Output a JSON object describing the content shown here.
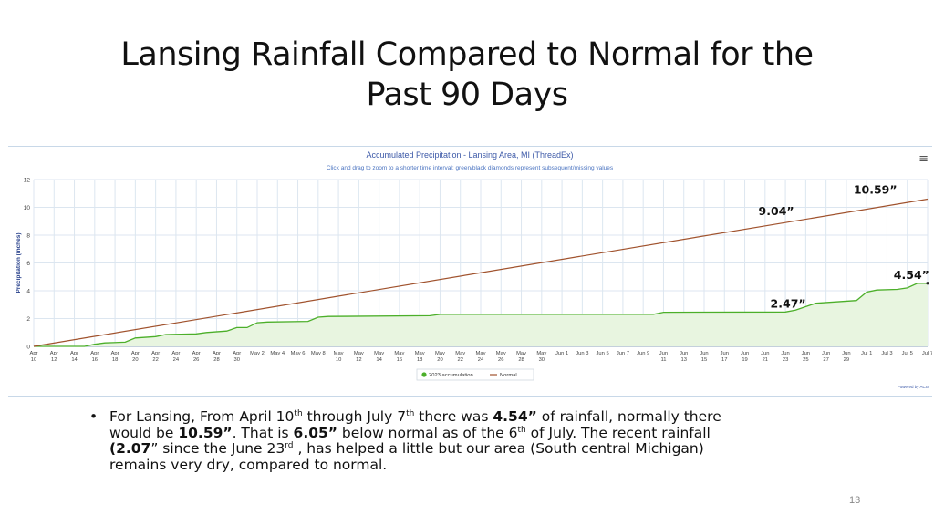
{
  "slide": {
    "title_line1": "Lansing Rainfall Compared to Normal for the",
    "title_line2": "Past 90 Days",
    "page_number": "13",
    "bullet_symbol": "•",
    "bullet": {
      "p1": "For Lansing, From April 10",
      "s1": "th",
      "p2": " through July 7",
      "s2": "th",
      "p3": " there was ",
      "b1": "4.54”",
      "p4": " of rainfall, normally there would be ",
      "b2": "10.59”",
      "p5": ".  That is ",
      "b3": "6.05”",
      "p6": " below normal as of the 6",
      "s3": "th",
      "p7": " of July. The recent rainfall ",
      "b4": "(2.07",
      "p8": "” since the June 23",
      "s4": "rd",
      "p9": " , has helped a little but our area (South central Michigan) remains very dry, compared to normal."
    }
  },
  "chart_data": {
    "type": "line",
    "title": "Accumulated Precipitation - Lansing Area, MI (ThreadEx)",
    "subtitle": "Click and drag to zoom to a shorter time interval; green/black diamonds represent subsequent/missing values",
    "ylabel": "Precipitation (inches)",
    "xlabel": "",
    "ylim": [
      0,
      12
    ],
    "yticks": [
      0,
      2,
      4,
      6,
      8,
      10,
      12
    ],
    "grid": true,
    "legend_position": "bottom-center",
    "credit": "Powered by ACIS",
    "menu_icon": "hamburger-menu-icon",
    "x_start": "Apr 10",
    "x_end": "Jul 7",
    "x_days": 88,
    "xtick_labels": [
      "Apr 10",
      "Apr 12",
      "Apr 14",
      "Apr 16",
      "Apr 18",
      "Apr 20",
      "Apr 22",
      "Apr 24",
      "Apr 26",
      "Apr 28",
      "Apr 30",
      "May 2",
      "May 4",
      "May 6",
      "May 8",
      "May 10",
      "May 12",
      "May 14",
      "May 16",
      "May 18",
      "May 20",
      "May 22",
      "May 24",
      "May 26",
      "May 28",
      "May 30",
      "Jun 1",
      "Jun 3",
      "Jun 5",
      "Jun 7",
      "Jun 9",
      "Jun 11",
      "Jun 13",
      "Jun 15",
      "Jun 17",
      "Jun 19",
      "Jun 21",
      "Jun 23",
      "Jun 25",
      "Jun 27",
      "Jun 29",
      "Jul 1",
      "Jul 3",
      "Jul 5",
      "Jul 7"
    ],
    "series": [
      {
        "name": "2023 accumulation",
        "color": "#4caf2a",
        "fill": "#e8f5e0",
        "type": "area",
        "points": [
          [
            "Apr 10",
            0.0
          ],
          [
            "Apr 15",
            0.0
          ],
          [
            "Apr 16",
            0.15
          ],
          [
            "Apr 17",
            0.25
          ],
          [
            "Apr 19",
            0.3
          ],
          [
            "Apr 20",
            0.6
          ],
          [
            "Apr 22",
            0.7
          ],
          [
            "Apr 23",
            0.85
          ],
          [
            "Apr 26",
            0.9
          ],
          [
            "Apr 27",
            1.0
          ],
          [
            "Apr 29",
            1.1
          ],
          [
            "Apr 30",
            1.35
          ],
          [
            "May 1",
            1.35
          ],
          [
            "May 2",
            1.7
          ],
          [
            "May 3",
            1.75
          ],
          [
            "May 7",
            1.8
          ],
          [
            "May 8",
            2.1
          ],
          [
            "May 9",
            2.15
          ],
          [
            "May 19",
            2.2
          ],
          [
            "May 20",
            2.3
          ],
          [
            "Jun 10",
            2.3
          ],
          [
            "Jun 11",
            2.45
          ],
          [
            "Jun 23",
            2.47
          ],
          [
            "Jun 24",
            2.6
          ],
          [
            "Jun 26",
            3.1
          ],
          [
            "Jun 28",
            3.2
          ],
          [
            "Jun 30",
            3.3
          ],
          [
            "Jul 1",
            3.9
          ],
          [
            "Jul 2",
            4.05
          ],
          [
            "Jul 4",
            4.1
          ],
          [
            "Jul 5",
            4.2
          ],
          [
            "Jul 6",
            4.54
          ],
          [
            "Jul 7",
            4.54
          ]
        ]
      },
      {
        "name": "Normal",
        "color": "#a0522d",
        "type": "line",
        "points": [
          [
            "Apr 10",
            0.0
          ],
          [
            "Jul 7",
            10.59
          ]
        ]
      }
    ],
    "annotations": [
      {
        "text": "10.59”",
        "date": "Jul 4",
        "value": 10.59
      },
      {
        "text": "9.04”",
        "date": "Jun 23",
        "value": 9.04
      },
      {
        "text": "4.54”",
        "date": "Jul 6",
        "value": 4.54
      },
      {
        "text": "2.47”",
        "date": "Jun 23",
        "value": 2.47
      }
    ]
  }
}
